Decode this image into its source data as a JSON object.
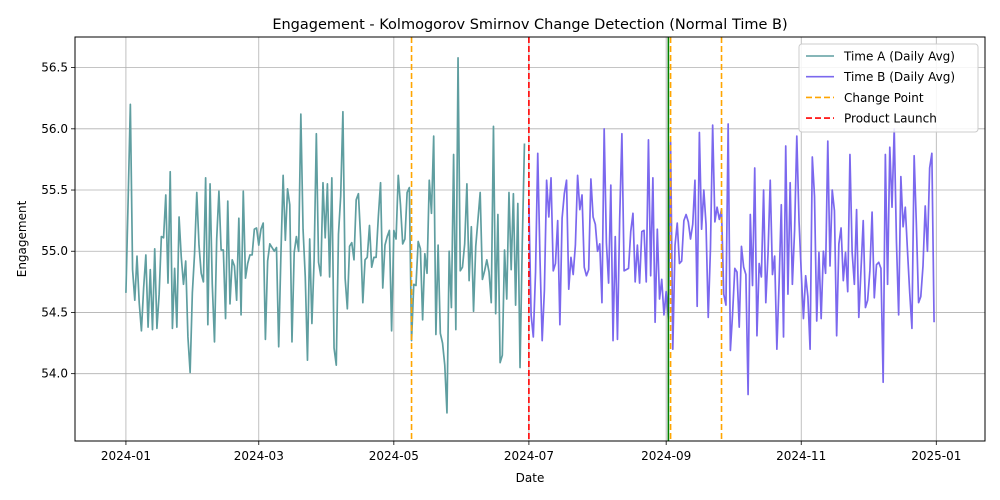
{
  "chart_data": {
    "type": "line",
    "title": "Engagement - Kolmogorov Smirnov Change Detection (Normal Time B)",
    "xlabel": "Date",
    "ylabel": "Engagement",
    "xlim": [
      "2023-12-09",
      "2025-01-23"
    ],
    "ylim": [
      53.45,
      56.75
    ],
    "x_ticks": [
      "2024-01-01",
      "2024-03-01",
      "2024-05-01",
      "2024-07-01",
      "2024-09-01",
      "2024-11-01",
      "2025-01-01"
    ],
    "x_tick_labels": [
      "2024-01",
      "2024-03",
      "2024-05",
      "2024-07",
      "2024-09",
      "2024-11",
      "2025-01"
    ],
    "y_ticks": [
      54.0,
      54.5,
      55.0,
      55.5,
      56.0,
      56.5
    ],
    "y_tick_labels": [
      "54.0",
      "54.5",
      "55.0",
      "55.5",
      "56.0",
      "56.5"
    ],
    "grid": true,
    "legend_position": "top-right",
    "colors": {
      "time_a": "#5f9ea0",
      "time_b": "#7b68ee",
      "change_point": "#ffa500",
      "product_launch": "#ff0000",
      "green_marker": "#008000"
    },
    "series": [
      {
        "name": "Time A (Daily Avg)",
        "start_date": "2024-01-01",
        "values": [
          54.66,
          55.42,
          56.2,
          54.85,
          54.6,
          54.96,
          54.58,
          54.35,
          54.7,
          54.97,
          54.38,
          54.85,
          54.36,
          55.02,
          54.37,
          54.65,
          55.12,
          55.11,
          55.46,
          54.74,
          55.65,
          54.37,
          54.86,
          54.38,
          55.28,
          54.95,
          54.73,
          54.92,
          54.3,
          54.01,
          54.66,
          54.98,
          55.48,
          55.05,
          54.82,
          54.75,
          55.6,
          54.4,
          55.55,
          54.73,
          54.26,
          55.1,
          55.49,
          55.01,
          55.01,
          54.45,
          55.41,
          54.57,
          54.93,
          54.88,
          54.6,
          55.27,
          54.48,
          55.49,
          54.78,
          54.9,
          54.97,
          54.97,
          55.18,
          55.19,
          55.05,
          55.18,
          55.23,
          54.28,
          54.92,
          55.06,
          55.03,
          55.0,
          55.03,
          54.22,
          54.97,
          55.62,
          55.09,
          55.51,
          55.38,
          54.26,
          54.99,
          55.12,
          55.0,
          56.12,
          55.18,
          54.79,
          54.11,
          55.1,
          54.41,
          54.93,
          55.96,
          54.91,
          54.8,
          55.56,
          55.11,
          55.55,
          54.79,
          55.6,
          54.21,
          54.07,
          55.14,
          55.45,
          56.14,
          54.78,
          54.53,
          55.04,
          55.07,
          54.93,
          55.42,
          55.47,
          55.11,
          54.58,
          54.93,
          54.95,
          55.21,
          54.87,
          54.95,
          54.95,
          55.28,
          55.56,
          54.7,
          55.05,
          55.12,
          55.17,
          54.35,
          55.17,
          55.1,
          55.62,
          55.38,
          55.06,
          55.1,
          55.48,
          55.52,
          54.27,
          54.73,
          54.72,
          55.08,
          55.02,
          54.44,
          54.98,
          54.82,
          55.58,
          55.31,
          55.94,
          54.32,
          55.05,
          54.33,
          54.25,
          54.07,
          53.68,
          55.0,
          54.54,
          55.79,
          54.36,
          56.58,
          54.84,
          54.87,
          55.06,
          55.55,
          54.76,
          55.2,
          54.51,
          55.04,
          55.26,
          55.48,
          54.77,
          54.84,
          54.93,
          54.83,
          54.58,
          56.02,
          54.49,
          55.3,
          54.09,
          54.15,
          55.01,
          54.61,
          55.48,
          54.85,
          55.47,
          54.56,
          55.39,
          54.05,
          55.05,
          55.88
        ],
        "markers": false
      },
      {
        "name": "Time B (Daily Avg)",
        "start_date": "2024-07-01",
        "values": [
          55.39,
          54.48,
          54.3,
          54.83,
          55.8,
          54.95,
          54.27,
          54.68,
          55.58,
          55.28,
          55.6,
          54.84,
          54.9,
          55.25,
          54.4,
          55.27,
          55.47,
          55.58,
          54.69,
          54.95,
          54.81,
          55.05,
          55.62,
          55.34,
          55.46,
          54.87,
          54.8,
          54.85,
          55.59,
          55.28,
          55.22,
          55.0,
          55.06,
          54.58,
          56.0,
          55.07,
          54.74,
          55.54,
          54.27,
          55.12,
          54.28,
          55.26,
          55.96,
          54.84,
          54.85,
          54.86,
          55.16,
          55.31,
          54.75,
          55.05,
          54.74,
          55.16,
          55.17,
          54.75,
          55.91,
          54.8,
          55.6,
          54.42,
          55.18,
          54.61,
          54.77,
          54.48,
          54.67,
          54.45,
          55.89,
          54.2,
          55.05,
          55.23,
          54.9,
          54.92,
          55.25,
          55.3,
          55.24,
          55.1,
          55.22,
          55.58,
          54.55,
          55.97,
          55.18,
          55.5,
          55.22,
          54.46,
          55.02,
          56.03,
          55.24,
          55.36,
          55.26,
          55.34,
          54.65,
          54.56,
          56.04,
          54.19,
          54.49,
          54.86,
          54.83,
          54.38,
          55.04,
          54.87,
          54.81,
          53.83,
          55.3,
          54.72,
          55.68,
          54.31,
          54.9,
          54.79,
          55.5,
          54.58,
          54.98,
          55.58,
          54.81,
          54.96,
          54.2,
          54.74,
          55.38,
          54.3,
          55.86,
          54.65,
          55.56,
          54.73,
          55.17,
          55.94,
          55.25,
          54.83,
          54.45,
          54.8,
          54.63,
          54.2,
          55.77,
          55.45,
          54.43,
          54.99,
          54.45,
          55.0,
          54.82,
          55.9,
          54.88,
          55.5,
          55.33,
          54.31,
          55.06,
          55.19,
          54.76,
          54.99,
          54.67,
          55.79,
          54.99,
          54.73,
          55.34,
          54.46,
          54.85,
          55.25,
          54.54,
          54.6,
          54.84,
          55.32,
          54.62,
          54.89,
          54.91,
          54.86,
          53.93,
          55.79,
          54.73,
          55.85,
          55.36,
          56.0,
          55.08,
          54.48,
          55.61,
          55.2,
          55.36,
          55.0,
          54.66,
          54.37,
          55.78,
          55.22,
          54.58,
          54.63,
          54.88,
          55.37,
          55.0,
          55.68,
          55.8,
          54.42
        ],
        "markers": false
      }
    ],
    "vertical_lines": [
      {
        "name": "Change Point",
        "date": "2024-05-09",
        "color": "#ffa500",
        "style": "dashed",
        "in_legend": true
      },
      {
        "name": "Product Launch",
        "date": "2024-07-01",
        "color": "#ff0000",
        "style": "dashed",
        "in_legend": true
      },
      {
        "name": "",
        "date": "2024-09-02",
        "color": "#008000",
        "style": "solid",
        "in_legend": false
      },
      {
        "name": "",
        "date": "2024-09-03",
        "color": "#ffa500",
        "style": "dashed",
        "in_legend": false
      },
      {
        "name": "",
        "date": "2024-09-26",
        "color": "#ffa500",
        "style": "dashed",
        "in_legend": false
      }
    ],
    "legend": [
      {
        "label": "Time A (Daily Avg)",
        "color": "#5f9ea0",
        "style": "solid"
      },
      {
        "label": "Time B (Daily Avg)",
        "color": "#7b68ee",
        "style": "solid"
      },
      {
        "label": "Change Point",
        "color": "#ffa500",
        "style": "dashed"
      },
      {
        "label": "Product Launch",
        "color": "#ff0000",
        "style": "dashed"
      }
    ]
  }
}
